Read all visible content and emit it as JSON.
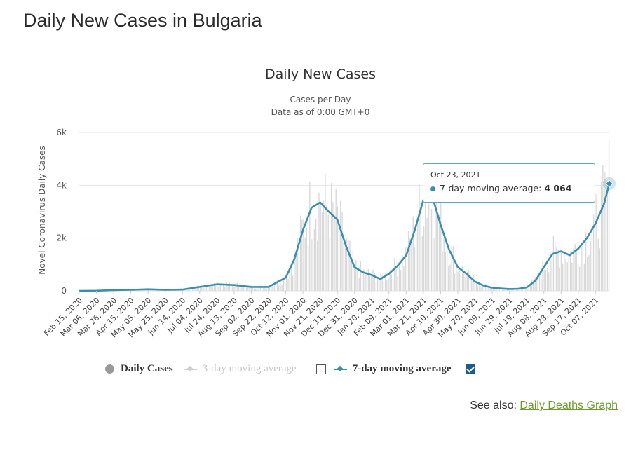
{
  "page": {
    "title": "Daily New Cases in Bulgaria"
  },
  "legend": {
    "daily_cases": "Daily Cases",
    "three_day": "3-day moving average",
    "seven_day": "7-day moving average"
  },
  "see_also": {
    "label": "See also:",
    "link": "Daily Deaths Graph"
  },
  "tooltip": {
    "date": "Oct 23, 2021",
    "series": "7-day moving average:",
    "value": "4 064"
  },
  "colors": {
    "line": "#3a8fb0",
    "bars": "#d9d9d9",
    "grid": "#e6e6e6",
    "tooltip_border": "#5aa6c4"
  },
  "chart_data": {
    "type": "line",
    "title": "Daily New Cases",
    "subtitle_1": "Cases per Day",
    "subtitle_2": "Data as of 0:00 GMT+0",
    "ylabel": "Novel Coronavirus Daily Cases",
    "xlabel": "",
    "ylim": [
      0,
      6000
    ],
    "y_ticks": [
      0,
      2000,
      4000,
      6000
    ],
    "y_tick_labels": [
      "0",
      "2k",
      "4k",
      "6k"
    ],
    "grid": true,
    "legend_position": "bottom",
    "x_tick_labels": [
      "Feb 15, 2020",
      "Mar 06, 2020",
      "Mar 26, 2020",
      "Apr 15, 2020",
      "May 05, 2020",
      "May 25, 2020",
      "Jun 14, 2020",
      "Jul 04, 2020",
      "Jul 24, 2020",
      "Aug 13, 2020",
      "Sep 02, 2020",
      "Sep 22, 2020",
      "Oct 12, 2020",
      "Nov 01, 2020",
      "Nov 21, 2020",
      "Dec 11, 2020",
      "Dec 31, 2020",
      "Jan 20, 2021",
      "Feb 09, 2021",
      "Mar 01, 2021",
      "Mar 21, 2021",
      "Apr 10, 2021",
      "Apr 30, 2021",
      "May 20, 2021",
      "Jun 09, 2021",
      "Jun 29, 2021",
      "Jul 19, 2021",
      "Aug 08, 2021",
      "Aug 28, 2021",
      "Sep 17, 2021",
      "Oct 07, 2021"
    ],
    "x_range": [
      "Feb 15, 2020",
      "Oct 23, 2021"
    ],
    "series": [
      {
        "name": "7-day moving average",
        "points": [
          [
            "Feb 15, 2020",
            0
          ],
          [
            "Mar 06, 2020",
            5
          ],
          [
            "Mar 26, 2020",
            30
          ],
          [
            "Apr 15, 2020",
            40
          ],
          [
            "May 05, 2020",
            60
          ],
          [
            "May 25, 2020",
            40
          ],
          [
            "Jun 14, 2020",
            50
          ],
          [
            "Jul 04, 2020",
            150
          ],
          [
            "Jul 24, 2020",
            250
          ],
          [
            "Aug 13, 2020",
            220
          ],
          [
            "Sep 02, 2020",
            150
          ],
          [
            "Sep 22, 2020",
            150
          ],
          [
            "Oct 12, 2020",
            500
          ],
          [
            "Oct 22, 2020",
            1200
          ],
          [
            "Nov 01, 2020",
            2300
          ],
          [
            "Nov 11, 2020",
            3150
          ],
          [
            "Nov 21, 2020",
            3350
          ],
          [
            "Dec 01, 2020",
            3000
          ],
          [
            "Dec 11, 2020",
            2700
          ],
          [
            "Dec 21, 2020",
            1700
          ],
          [
            "Dec 31, 2020",
            900
          ],
          [
            "Jan 10, 2021",
            700
          ],
          [
            "Jan 20, 2021",
            600
          ],
          [
            "Jan 30, 2021",
            450
          ],
          [
            "Feb 09, 2021",
            650
          ],
          [
            "Feb 19, 2021",
            950
          ],
          [
            "Mar 01, 2021",
            1350
          ],
          [
            "Mar 11, 2021",
            2300
          ],
          [
            "Mar 21, 2021",
            3450
          ],
          [
            "Mar 31, 2021",
            3600
          ],
          [
            "Apr 10, 2021",
            2500
          ],
          [
            "Apr 20, 2021",
            1550
          ],
          [
            "Apr 30, 2021",
            900
          ],
          [
            "May 10, 2021",
            650
          ],
          [
            "May 20, 2021",
            350
          ],
          [
            "May 30, 2021",
            200
          ],
          [
            "Jun 09, 2021",
            120
          ],
          [
            "Jun 19, 2021",
            90
          ],
          [
            "Jun 29, 2021",
            70
          ],
          [
            "Jul 09, 2021",
            80
          ],
          [
            "Jul 19, 2021",
            130
          ],
          [
            "Jul 29, 2021",
            380
          ],
          [
            "Aug 08, 2021",
            900
          ],
          [
            "Aug 18, 2021",
            1400
          ],
          [
            "Aug 28, 2021",
            1500
          ],
          [
            "Sep 07, 2021",
            1350
          ],
          [
            "Sep 17, 2021",
            1600
          ],
          [
            "Sep 27, 2021",
            2000
          ],
          [
            "Oct 07, 2021",
            2550
          ],
          [
            "Oct 17, 2021",
            3300
          ],
          [
            "Oct 23, 2021",
            4064
          ]
        ]
      }
    ]
  }
}
